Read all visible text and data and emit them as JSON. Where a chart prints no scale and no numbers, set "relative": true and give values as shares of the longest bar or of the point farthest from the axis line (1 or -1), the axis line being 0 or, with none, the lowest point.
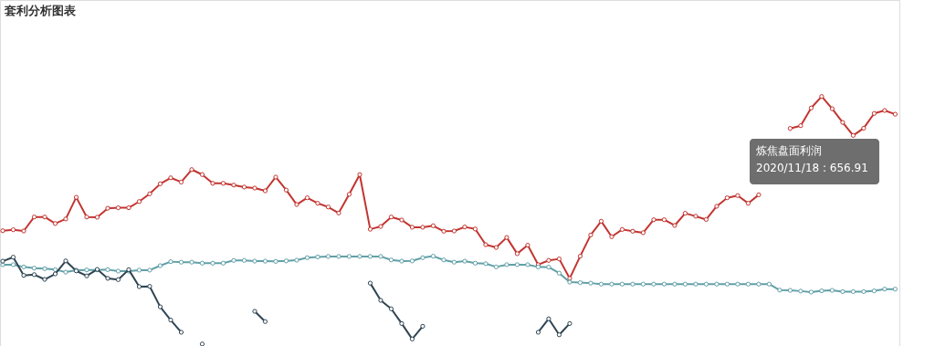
{
  "chart_data": {
    "type": "line",
    "title": "套利分析图表",
    "relative": true,
    "marker": "circle",
    "line_style": "solid",
    "categories": [
      null,
      null,
      null,
      null,
      null,
      null,
      null,
      null,
      null,
      null,
      null,
      null,
      null,
      null,
      null,
      null,
      null,
      null,
      null,
      null,
      null,
      null,
      null,
      null,
      null,
      null,
      null,
      null,
      null,
      null,
      null,
      null,
      null,
      null,
      null,
      null,
      null,
      null,
      null,
      null,
      null,
      null,
      null,
      null,
      null,
      null,
      null,
      null,
      null,
      null,
      null,
      null,
      null,
      null,
      null,
      null,
      null,
      null,
      null,
      null,
      null,
      null,
      null,
      null,
      null,
      null,
      null,
      null,
      null,
      null,
      null,
      null,
      null,
      null,
      null,
      null,
      null,
      null,
      null,
      null,
      null,
      null,
      null,
      null,
      null,
      null
    ],
    "series": [
      {
        "color": "#c23531",
        "values": [
          0.462,
          0.466,
          0.461,
          0.517,
          0.517,
          0.491,
          0.509,
          0.596,
          0.517,
          0.516,
          0.552,
          0.554,
          0.554,
          0.579,
          0.61,
          0.65,
          0.674,
          0.657,
          0.707,
          0.687,
          0.652,
          0.652,
          0.645,
          0.637,
          0.633,
          0.622,
          0.677,
          0.625,
          0.567,
          0.594,
          0.572,
          0.557,
          0.533,
          0.608,
          0.687,
          0.468,
          0.479,
          0.517,
          0.505,
          0.476,
          0.476,
          0.482,
          0.46,
          0.461,
          0.477,
          0.469,
          0.406,
          0.395,
          0.435,
          0.37,
          0.404,
          0.326,
          0.343,
          0.349,
          0.271,
          0.36,
          0.445,
          0.5,
          0.438,
          0.467,
          0.46,
          0.454,
          0.506,
          0.506,
          0.483,
          0.532,
          0.52,
          0.507,
          0.56,
          0.594,
          0.603,
          0.572,
          0.606,
          null,
          null,
          0.872,
          0.883,
          0.954,
          1,
          0.951,
          0.896,
          0.844,
          0.873,
          0.932,
          0.944,
          0.929
        ]
      },
      {
        "color": "#61a0a8",
        "values": [
          0.326,
          0.326,
          0.317,
          0.312,
          0.31,
          0.306,
          0.296,
          0.304,
          0.305,
          0.305,
          0.306,
          0.3,
          0.3,
          0.304,
          0.304,
          0.322,
          0.338,
          0.336,
          0.336,
          0.332,
          0.332,
          0.332,
          0.343,
          0.343,
          0.34,
          0.34,
          0.339,
          0.341,
          0.344,
          0.354,
          0.357,
          0.359,
          0.359,
          0.359,
          0.359,
          0.359,
          0.359,
          0.345,
          0.34,
          0.341,
          0.354,
          0.36,
          0.345,
          0.336,
          0.34,
          0.332,
          0.33,
          0.317,
          0.326,
          0.326,
          0.326,
          0.317,
          0.316,
          0.292,
          0.256,
          0.254,
          0.252,
          0.248,
          0.248,
          0.248,
          0.248,
          0.248,
          0.248,
          0.248,
          0.248,
          0.248,
          0.248,
          0.248,
          0.248,
          0.248,
          0.248,
          0.248,
          0.248,
          0.248,
          0.224,
          0.223,
          0.22,
          0.216,
          0.221,
          0.223,
          0.218,
          0.218,
          0.218,
          0.221,
          0.228,
          0.228
        ]
      },
      {
        "color": "#2f4554",
        "values": [
          0.34,
          0.356,
          0.283,
          0.286,
          0.267,
          0.289,
          0.341,
          0.301,
          0.281,
          0.307,
          0.271,
          0.266,
          0.306,
          0.238,
          0.239,
          0.157,
          0.104,
          0.055,
          null,
          0.008,
          null,
          null,
          null,
          null,
          0.139,
          0.098,
          null,
          null,
          null,
          null,
          null,
          null,
          null,
          null,
          null,
          0.252,
          0.183,
          0.149,
          0.09,
          0.028,
          0.079,
          null,
          null,
          null,
          null,
          null,
          null,
          null,
          null,
          null,
          null,
          0.055,
          0.109,
          0.045,
          0.09,
          null,
          null,
          null,
          null,
          null,
          null,
          null,
          null,
          null,
          null,
          null,
          null,
          null,
          null,
          null,
          null,
          null,
          null,
          null,
          null,
          null,
          null,
          null,
          null,
          null,
          null,
          null,
          null,
          null,
          null,
          null
        ]
      }
    ],
    "annotations": [
      "炼焦盘面利润",
      "2020/11/18 : 656.91"
    ]
  }
}
